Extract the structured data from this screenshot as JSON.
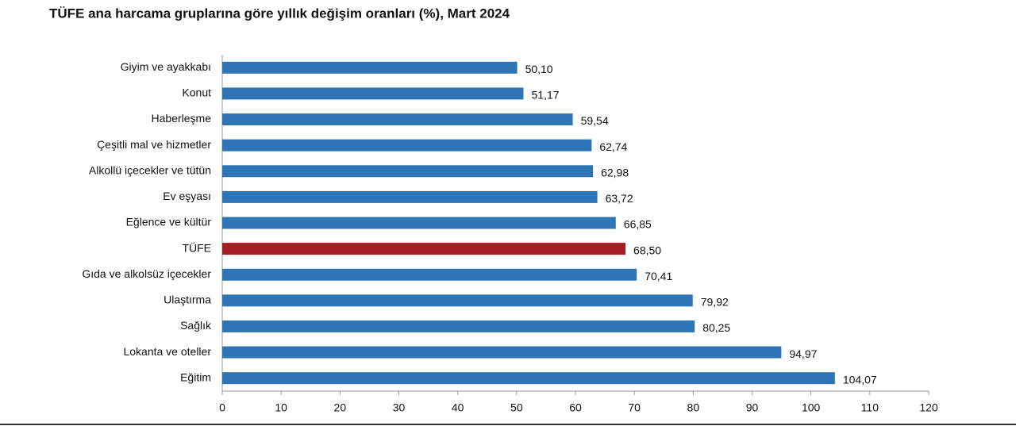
{
  "chart_data": {
    "type": "bar",
    "orientation": "horizontal",
    "title": "TÜFE ana harcama gruplarına göre yıllık değişim oranları (%), Mart 2024",
    "categories": [
      "Giyim ve ayakkabı",
      "Konut",
      "Haberleşme",
      "Çeşitli mal ve hizmetler",
      "Alkollü içecekler ve tütün",
      "Ev eşyası",
      "Eğlence ve kültür",
      "TÜFE",
      "Gıda ve alkolsüz içecekler",
      "Ulaştırma",
      "Sağlık",
      "Lokanta ve oteller",
      "Eğitim"
    ],
    "values": [
      50.1,
      51.17,
      59.54,
      62.74,
      62.98,
      63.72,
      66.85,
      68.5,
      70.41,
      79.92,
      80.25,
      94.97,
      104.07
    ],
    "value_labels": [
      "50,10",
      "51,17",
      "59,54",
      "62,74",
      "62,98",
      "63,72",
      "66,85",
      "68,50",
      "70,41",
      "79,92",
      "80,25",
      "94,97",
      "104,07"
    ],
    "colors": [
      "#2e75b6",
      "#2e75b6",
      "#2e75b6",
      "#2e75b6",
      "#2e75b6",
      "#2e75b6",
      "#2e75b6",
      "#a31d22",
      "#2e75b6",
      "#2e75b6",
      "#2e75b6",
      "#2e75b6",
      "#2e75b6"
    ],
    "xlim": [
      0,
      120
    ],
    "xticks": [
      0,
      10,
      20,
      30,
      40,
      50,
      60,
      70,
      80,
      90,
      100,
      110,
      120
    ],
    "grid": false
  }
}
